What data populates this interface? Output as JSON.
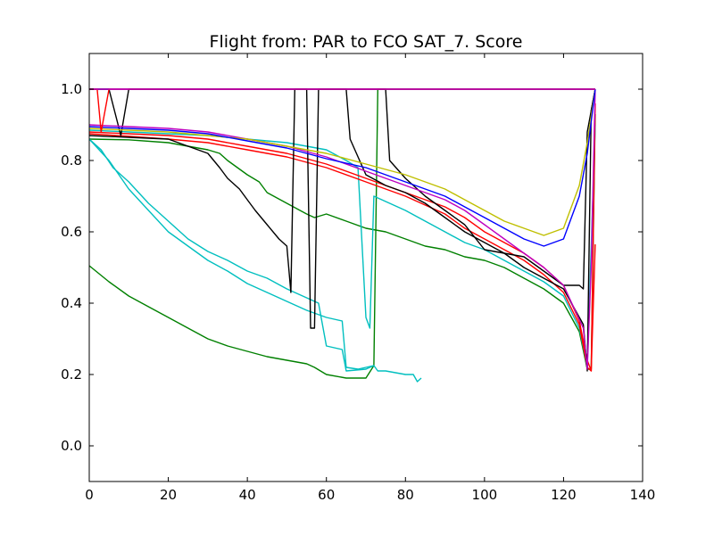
{
  "chart_data": {
    "type": "line",
    "title": "Flight from: PAR to FCO  SAT_7. Score",
    "xlabel": "",
    "ylabel": "",
    "xlim": [
      0,
      140
    ],
    "ylim": [
      -0.1,
      1.1
    ],
    "xticks": [
      0,
      20,
      40,
      60,
      80,
      100,
      120,
      140
    ],
    "yticks": [
      0.0,
      0.2,
      0.4,
      0.6,
      0.8,
      1.0
    ],
    "xtick_labels": [
      "0",
      "20",
      "40",
      "60",
      "80",
      "100",
      "120",
      "140"
    ],
    "ytick_labels": [
      "0.0",
      "0.2",
      "0.4",
      "0.6",
      "0.8",
      "1.0"
    ],
    "grid": false,
    "legend": "none",
    "series": [
      {
        "color": "#0000ff",
        "points": [
          [
            0,
            1.0
          ],
          [
            128,
            1.0
          ]
        ]
      },
      {
        "color": "#008000",
        "points": [
          [
            0,
            0.86
          ],
          [
            10,
            0.858
          ],
          [
            20,
            0.85
          ],
          [
            25,
            0.84
          ],
          [
            30,
            0.83
          ],
          [
            33,
            0.82
          ],
          [
            35,
            0.8
          ],
          [
            40,
            0.76
          ],
          [
            43,
            0.74
          ],
          [
            45,
            0.71
          ],
          [
            50,
            0.68
          ],
          [
            55,
            0.65
          ],
          [
            57,
            0.64
          ],
          [
            60,
            0.65
          ],
          [
            65,
            0.63
          ],
          [
            70,
            0.61
          ],
          [
            75,
            0.6
          ],
          [
            80,
            0.58
          ],
          [
            85,
            0.56
          ],
          [
            90,
            0.55
          ],
          [
            95,
            0.53
          ],
          [
            100,
            0.52
          ],
          [
            105,
            0.5
          ],
          [
            110,
            0.47
          ],
          [
            115,
            0.44
          ],
          [
            120,
            0.4
          ],
          [
            124,
            0.32
          ],
          [
            126,
            0.215
          ],
          [
            127,
            0.215
          ],
          [
            128,
            0.93
          ]
        ]
      },
      {
        "color": "#008000",
        "points": [
          [
            0,
            0.505
          ],
          [
            5,
            0.46
          ],
          [
            10,
            0.42
          ],
          [
            15,
            0.39
          ],
          [
            20,
            0.36
          ],
          [
            25,
            0.33
          ],
          [
            30,
            0.3
          ],
          [
            35,
            0.28
          ],
          [
            40,
            0.265
          ],
          [
            45,
            0.25
          ],
          [
            50,
            0.24
          ],
          [
            55,
            0.23
          ],
          [
            57,
            0.22
          ],
          [
            60,
            0.2
          ],
          [
            65,
            0.19
          ],
          [
            70,
            0.19
          ],
          [
            72,
            0.225
          ],
          [
            73,
            1.0
          ],
          [
            80,
            1.0
          ],
          [
            90,
            1.0
          ],
          [
            100,
            1.0
          ],
          [
            110,
            1.0
          ],
          [
            120,
            1.0
          ],
          [
            128,
            1.0
          ]
        ]
      },
      {
        "color": "#00bfbf",
        "points": [
          [
            0,
            0.86
          ],
          [
            5,
            0.8
          ],
          [
            10,
            0.72
          ],
          [
            15,
            0.66
          ],
          [
            20,
            0.6
          ],
          [
            25,
            0.56
          ],
          [
            30,
            0.52
          ],
          [
            35,
            0.49
          ],
          [
            40,
            0.455
          ],
          [
            45,
            0.43
          ],
          [
            50,
            0.405
          ],
          [
            55,
            0.38
          ],
          [
            60,
            0.36
          ],
          [
            64,
            0.35
          ],
          [
            65,
            0.22
          ],
          [
            68,
            0.215
          ],
          [
            70,
            0.22
          ],
          [
            72,
            0.225
          ],
          [
            73,
            0.21
          ],
          [
            75,
            0.21
          ],
          [
            80,
            0.2
          ],
          [
            82,
            0.2
          ],
          [
            83,
            0.18
          ],
          [
            84,
            0.19
          ]
        ]
      },
      {
        "color": "#00bfbf",
        "points": [
          [
            0,
            0.885
          ],
          [
            10,
            0.88
          ],
          [
            20,
            0.875
          ],
          [
            30,
            0.87
          ],
          [
            40,
            0.86
          ],
          [
            50,
            0.85
          ],
          [
            60,
            0.83
          ],
          [
            65,
            0.8
          ],
          [
            68,
            0.78
          ],
          [
            70,
            0.36
          ],
          [
            71,
            0.33
          ],
          [
            72,
            0.7
          ],
          [
            80,
            0.66
          ],
          [
            85,
            0.63
          ],
          [
            90,
            0.6
          ],
          [
            95,
            0.57
          ],
          [
            100,
            0.55
          ],
          [
            105,
            0.52
          ],
          [
            110,
            0.49
          ],
          [
            115,
            0.46
          ],
          [
            120,
            0.42
          ],
          [
            124,
            0.33
          ],
          [
            126,
            0.22
          ],
          [
            128,
            0.9
          ]
        ]
      },
      {
        "color": "#00bfbf",
        "points": [
          [
            0,
            0.86
          ],
          [
            3,
            0.83
          ],
          [
            6,
            0.78
          ],
          [
            10,
            0.74
          ],
          [
            15,
            0.68
          ],
          [
            20,
            0.63
          ],
          [
            25,
            0.58
          ],
          [
            30,
            0.545
          ],
          [
            35,
            0.52
          ],
          [
            40,
            0.49
          ],
          [
            45,
            0.47
          ],
          [
            50,
            0.44
          ],
          [
            55,
            0.415
          ],
          [
            58,
            0.4
          ],
          [
            60,
            0.28
          ],
          [
            64,
            0.27
          ],
          [
            65,
            0.21
          ],
          [
            70,
            0.215
          ],
          [
            72,
            0.225
          ]
        ]
      },
      {
        "color": "#ff0000",
        "points": [
          [
            0,
            0.88
          ],
          [
            10,
            0.875
          ],
          [
            20,
            0.87
          ],
          [
            30,
            0.86
          ],
          [
            40,
            0.84
          ],
          [
            50,
            0.82
          ],
          [
            60,
            0.79
          ],
          [
            70,
            0.75
          ],
          [
            80,
            0.71
          ],
          [
            90,
            0.67
          ],
          [
            95,
            0.64
          ],
          [
            100,
            0.6
          ],
          [
            105,
            0.57
          ],
          [
            110,
            0.54
          ],
          [
            115,
            0.5
          ],
          [
            120,
            0.45
          ],
          [
            124,
            0.35
          ],
          [
            126,
            0.24
          ],
          [
            127,
            0.21
          ],
          [
            128,
            0.96
          ]
        ]
      },
      {
        "color": "#ff0000",
        "points": [
          [
            0,
            0.875
          ],
          [
            10,
            0.868
          ],
          [
            20,
            0.86
          ],
          [
            30,
            0.85
          ],
          [
            40,
            0.83
          ],
          [
            50,
            0.81
          ],
          [
            60,
            0.78
          ],
          [
            70,
            0.74
          ],
          [
            80,
            0.7
          ],
          [
            90,
            0.65
          ],
          [
            95,
            0.61
          ],
          [
            100,
            0.58
          ],
          [
            105,
            0.55
          ],
          [
            110,
            0.52
          ],
          [
            115,
            0.48
          ],
          [
            120,
            0.43
          ],
          [
            124,
            0.34
          ],
          [
            126,
            0.22
          ],
          [
            127,
            0.21
          ],
          [
            128,
            0.565
          ]
        ]
      },
      {
        "color": "#000000",
        "points": [
          [
            0,
            0.87
          ],
          [
            10,
            0.865
          ],
          [
            20,
            0.86
          ],
          [
            25,
            0.84
          ],
          [
            30,
            0.82
          ],
          [
            33,
            0.78
          ],
          [
            35,
            0.75
          ],
          [
            38,
            0.72
          ],
          [
            40,
            0.69
          ],
          [
            42,
            0.66
          ],
          [
            45,
            0.62
          ],
          [
            48,
            0.58
          ],
          [
            50,
            0.56
          ],
          [
            51,
            0.43
          ],
          [
            52,
            1.0
          ],
          [
            60,
            1.0
          ],
          [
            65,
            1.0
          ],
          [
            66,
            0.86
          ],
          [
            70,
            0.76
          ],
          [
            75,
            0.73
          ],
          [
            80,
            0.71
          ],
          [
            85,
            0.68
          ],
          [
            90,
            0.64
          ],
          [
            95,
            0.6
          ],
          [
            100,
            0.57
          ],
          [
            105,
            0.54
          ],
          [
            110,
            0.5
          ],
          [
            115,
            0.47
          ],
          [
            120,
            0.44
          ],
          [
            125,
            0.34
          ],
          [
            126,
            0.21
          ],
          [
            127,
            0.94
          ],
          [
            128,
            1.0
          ]
        ]
      },
      {
        "color": "#000000",
        "points": [
          [
            0,
            1.0
          ],
          [
            5,
            1.0
          ],
          [
            8,
            0.87
          ],
          [
            10,
            1.0
          ],
          [
            20,
            1.0
          ],
          [
            30,
            1.0
          ],
          [
            40,
            1.0
          ],
          [
            50,
            1.0
          ],
          [
            55,
            1.0
          ],
          [
            56,
            0.33
          ],
          [
            57,
            0.33
          ],
          [
            58,
            1.0
          ],
          [
            70,
            1.0
          ],
          [
            75,
            1.0
          ],
          [
            76,
            0.8
          ],
          [
            80,
            0.75
          ],
          [
            85,
            0.7
          ],
          [
            90,
            0.66
          ],
          [
            95,
            0.62
          ],
          [
            100,
            0.55
          ],
          [
            110,
            0.53
          ],
          [
            120,
            0.45
          ],
          [
            124,
            0.45
          ],
          [
            125,
            0.44
          ],
          [
            126,
            0.88
          ],
          [
            128,
            1.0
          ]
        ]
      },
      {
        "color": "#bf00bf",
        "points": [
          [
            0,
            0.9
          ],
          [
            10,
            0.895
          ],
          [
            20,
            0.89
          ],
          [
            30,
            0.88
          ],
          [
            40,
            0.86
          ],
          [
            50,
            0.84
          ],
          [
            60,
            0.81
          ],
          [
            70,
            0.77
          ],
          [
            80,
            0.73
          ],
          [
            90,
            0.69
          ],
          [
            95,
            0.66
          ],
          [
            100,
            0.62
          ],
          [
            105,
            0.58
          ],
          [
            110,
            0.54
          ],
          [
            115,
            0.5
          ],
          [
            120,
            0.45
          ],
          [
            125,
            0.33
          ],
          [
            126,
            0.215
          ],
          [
            127,
            0.5
          ],
          [
            128,
            1.0
          ]
        ]
      },
      {
        "color": "#bfbf00",
        "points": [
          [
            0,
            0.89
          ],
          [
            10,
            0.885
          ],
          [
            20,
            0.88
          ],
          [
            30,
            0.87
          ],
          [
            40,
            0.86
          ],
          [
            50,
            0.84
          ],
          [
            60,
            0.82
          ],
          [
            70,
            0.79
          ],
          [
            80,
            0.76
          ],
          [
            90,
            0.72
          ],
          [
            95,
            0.69
          ],
          [
            100,
            0.66
          ],
          [
            105,
            0.63
          ],
          [
            110,
            0.61
          ],
          [
            115,
            0.59
          ],
          [
            120,
            0.61
          ],
          [
            124,
            0.73
          ],
          [
            126,
            0.85
          ],
          [
            128,
            1.0
          ]
        ]
      },
      {
        "color": "#0000ff",
        "points": [
          [
            0,
            0.895
          ],
          [
            10,
            0.89
          ],
          [
            20,
            0.885
          ],
          [
            30,
            0.875
          ],
          [
            40,
            0.855
          ],
          [
            50,
            0.835
          ],
          [
            60,
            0.805
          ],
          [
            70,
            0.78
          ],
          [
            80,
            0.74
          ],
          [
            90,
            0.7
          ],
          [
            95,
            0.67
          ],
          [
            100,
            0.64
          ],
          [
            105,
            0.61
          ],
          [
            110,
            0.58
          ],
          [
            115,
            0.56
          ],
          [
            120,
            0.58
          ],
          [
            124,
            0.7
          ],
          [
            126,
            0.82
          ],
          [
            128,
            1.0
          ]
        ]
      },
      {
        "color": "#ff0000",
        "points": [
          [
            0,
            1.0
          ],
          [
            2,
            1.0
          ],
          [
            3,
            0.88
          ],
          [
            5,
            1.0
          ],
          [
            20,
            1.0
          ],
          [
            40,
            1.0
          ],
          [
            60,
            1.0
          ],
          [
            80,
            1.0
          ],
          [
            90,
            1.0
          ],
          [
            100,
            1.0
          ],
          [
            110,
            1.0
          ],
          [
            120,
            1.0
          ],
          [
            125,
            1.0
          ],
          [
            128,
            1.0
          ]
        ]
      },
      {
        "color": "#bf00bf",
        "points": [
          [
            0,
            1.0
          ],
          [
            128,
            1.0
          ]
        ]
      }
    ]
  }
}
